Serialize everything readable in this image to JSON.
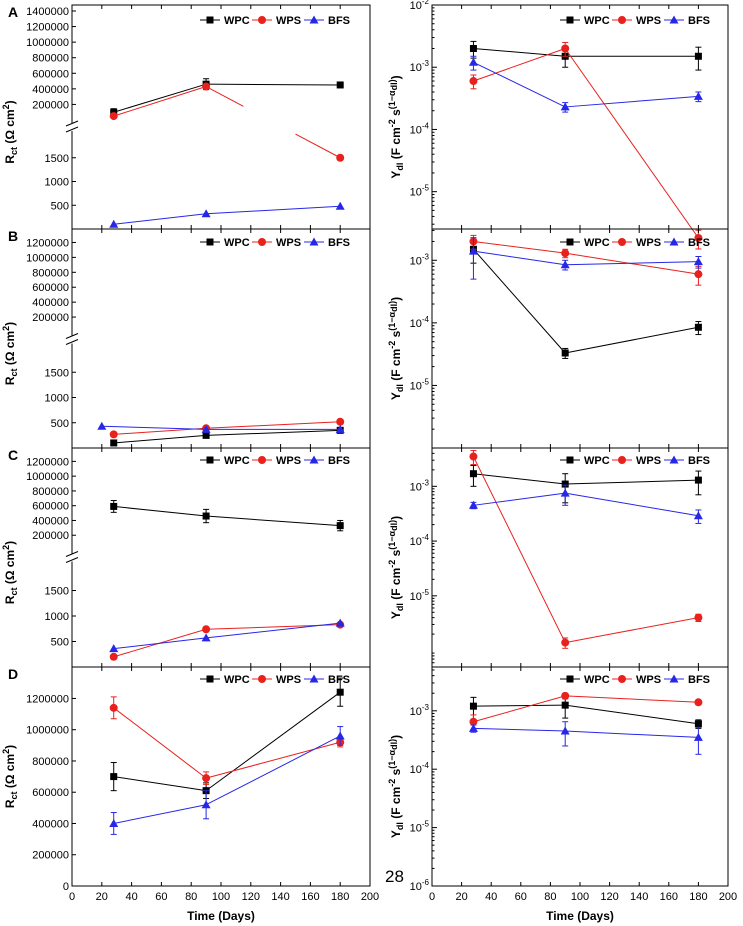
{
  "legend": [
    "WPC",
    "WPS",
    "BFS"
  ],
  "colors": {
    "WPC": "#000000",
    "WPS": "#e8211d",
    "BFS": "#2727e8"
  },
  "markers": {
    "WPC": "square",
    "WPS": "circle",
    "BFS": "triangle"
  },
  "x_axis": {
    "title": "Time (Days)",
    "ticks": [
      "0",
      "20",
      "40",
      "60",
      "80",
      "100",
      "120",
      "140",
      "160",
      "180",
      "200"
    ],
    "range": [
      0,
      200
    ]
  },
  "y_titles": {
    "rct": "R_ct (Ω cm²)",
    "ydl": "Y_dl (F cm⁻² s^(1−αdl))"
  },
  "page_number": "28",
  "chart_data": [
    {
      "panel": "A",
      "side": "left",
      "type": "line",
      "ylabel": "R_ct (Ω cm²)",
      "broken_axis": true,
      "upper": {
        "ylim": [
          0,
          1400000
        ],
        "ticks": [
          "200000",
          "400000",
          "600000",
          "800000",
          "1000000",
          "1200000",
          "1400000"
        ]
      },
      "lower": {
        "ylim": [
          0,
          2000
        ],
        "ticks": [
          "500",
          "1000",
          "1500"
        ]
      },
      "series": [
        {
          "name": "WPC",
          "points": [
            [
              28,
              100000,
              45000,
              "upper"
            ],
            [
              90,
              460000,
              70000,
              "upper"
            ],
            [
              180,
              450000,
              30000,
              "upper"
            ]
          ]
        },
        {
          "name": "WPS",
          "points": [
            [
              28,
              50000,
              0,
              "upper"
            ],
            [
              90,
              430000,
              0,
              "upper"
            ],
            [
              180,
              1500,
              0,
              "lower"
            ]
          ],
          "gap": [
            [
              115,
              150
            ]
          ]
        },
        {
          "name": "BFS",
          "points": [
            [
              28,
              100,
              0,
              "lower"
            ],
            [
              90,
              320,
              0,
              "lower"
            ],
            [
              180,
              480,
              0,
              "lower"
            ]
          ]
        }
      ]
    },
    {
      "panel": "A",
      "side": "right",
      "type": "line",
      "yscale": "log",
      "ylabel": "Y_dl (F cm⁻² s^(1−αdl))",
      "ylim_exp": [
        -5.6,
        -2
      ],
      "ticks": [
        "10-5",
        "10-4",
        "10-3",
        "10-2"
      ],
      "tick_exps": [
        -5,
        -4,
        -3,
        -2
      ],
      "series": [
        {
          "name": "WPC",
          "points": [
            [
              28,
              0.002,
              0.0006
            ],
            [
              90,
              0.0015,
              0.0005
            ],
            [
              180,
              0.0015,
              0.0006
            ]
          ]
        },
        {
          "name": "WPS",
          "points": [
            [
              28,
              0.0006,
              0.00015
            ],
            [
              90,
              0.002,
              0.0005
            ],
            [
              180,
              1.8e-06,
              6e-07
            ]
          ]
        },
        {
          "name": "BFS",
          "points": [
            [
              28,
              0.0012,
              0.0003
            ],
            [
              90,
              0.00023,
              4e-05
            ],
            [
              180,
              0.00034,
              6e-05
            ]
          ]
        }
      ]
    },
    {
      "panel": "B",
      "side": "left",
      "type": "line",
      "ylabel": "R_ct (Ω cm²)",
      "broken_axis": true,
      "upper": {
        "ylim": [
          0,
          1300000
        ],
        "ticks": [
          "200000",
          "400000",
          "600000",
          "800000",
          "1000000",
          "1200000"
        ]
      },
      "lower": {
        "ylim": [
          0,
          2000
        ],
        "ticks": [
          "500",
          "1000",
          "1500"
        ]
      },
      "series": [
        {
          "name": "WPC",
          "points": [
            [
              28,
              100,
              0,
              "lower"
            ],
            [
              90,
              250,
              0,
              "lower"
            ],
            [
              180,
              350,
              0,
              "lower"
            ]
          ]
        },
        {
          "name": "WPS",
          "points": [
            [
              28,
              270,
              0,
              "lower"
            ],
            [
              90,
              390,
              0,
              "lower"
            ],
            [
              180,
              520,
              0,
              "lower"
            ]
          ]
        },
        {
          "name": "BFS",
          "points": [
            [
              20,
              430,
              0,
              "lower"
            ],
            [
              90,
              370,
              0,
              "lower"
            ],
            [
              180,
              370,
              0,
              "lower"
            ]
          ]
        }
      ]
    },
    {
      "panel": "B",
      "side": "right",
      "type": "line",
      "yscale": "log",
      "ylabel": "Y_dl (F cm⁻² s^(1−αdl))",
      "ylim_exp": [
        -6,
        -2.5
      ],
      "ticks": [
        "10-5",
        "10-4",
        "10-3"
      ],
      "tick_exps": [
        -5,
        -4,
        -3
      ],
      "series": [
        {
          "name": "WPC",
          "points": [
            [
              28,
              0.0015,
              0.0006
            ],
            [
              90,
              3.3e-05,
              6e-06
            ],
            [
              180,
              8.5e-05,
              2e-05
            ]
          ]
        },
        {
          "name": "WPS",
          "points": [
            [
              28,
              0.002,
              0.0005
            ],
            [
              90,
              0.0013,
              0.0002
            ],
            [
              180,
              0.0006,
              0.0002
            ]
          ]
        },
        {
          "name": "BFS",
          "points": [
            [
              28,
              0.0014,
              0.0009
            ],
            [
              90,
              0.00085,
              0.00015
            ],
            [
              180,
              0.00095,
              0.0002
            ]
          ]
        }
      ]
    },
    {
      "panel": "C",
      "side": "left",
      "type": "line",
      "ylabel": "R_ct (Ω cm²)",
      "broken_axis": true,
      "upper": {
        "ylim": [
          0,
          1300000
        ],
        "ticks": [
          "200000",
          "400000",
          "600000",
          "800000",
          "1000000",
          "1200000"
        ]
      },
      "lower": {
        "ylim": [
          0,
          2000
        ],
        "ticks": [
          "500",
          "1000",
          "1500"
        ]
      },
      "series": [
        {
          "name": "WPC",
          "points": [
            [
              28,
              590000,
              80000,
              "upper"
            ],
            [
              90,
              460000,
              90000,
              "upper"
            ],
            [
              180,
              330000,
              70000,
              "upper"
            ]
          ]
        },
        {
          "name": "WPS",
          "points": [
            [
              28,
              200,
              0,
              "lower"
            ],
            [
              90,
              740,
              0,
              "lower"
            ],
            [
              180,
              830,
              0,
              "lower"
            ]
          ]
        },
        {
          "name": "BFS",
          "points": [
            [
              28,
              360,
              0,
              "lower"
            ],
            [
              90,
              570,
              0,
              "lower"
            ],
            [
              180,
              860,
              0,
              "lower"
            ]
          ]
        }
      ]
    },
    {
      "panel": "C",
      "side": "right",
      "type": "line",
      "yscale": "log",
      "ylabel": "Y_dl (F cm⁻² s^(1−αdl))",
      "ylim_exp": [
        -6.3,
        -2.3
      ],
      "ticks": [
        "10-5",
        "10-4",
        "10-3"
      ],
      "tick_exps": [
        -5,
        -4,
        -3
      ],
      "series": [
        {
          "name": "WPC",
          "points": [
            [
              28,
              0.0017,
              0.0007
            ],
            [
              90,
              0.0011,
              0.0006
            ],
            [
              180,
              0.0013,
              0.0006
            ]
          ]
        },
        {
          "name": "WPS",
          "points": [
            [
              28,
              0.0035,
              0.001
            ],
            [
              90,
              1.4e-06,
              3e-07
            ],
            [
              180,
              4e-06,
              6e-07
            ]
          ]
        },
        {
          "name": "BFS",
          "points": [
            [
              28,
              0.00045,
              6e-05
            ],
            [
              90,
              0.00075,
              0.0003
            ],
            [
              180,
              0.00029,
              8e-05
            ]
          ]
        }
      ]
    },
    {
      "panel": "D",
      "side": "left",
      "type": "line",
      "ylabel": "R_ct (Ω cm²)",
      "ylim": [
        0,
        1350000
      ],
      "ticks": [
        "0",
        "200000",
        "400000",
        "600000",
        "800000",
        "1000000",
        "1200000"
      ],
      "series": [
        {
          "name": "WPC",
          "points": [
            [
              28,
              700000,
              90000
            ],
            [
              90,
              610000,
              50000
            ],
            [
              180,
              1240000,
              90000
            ]
          ]
        },
        {
          "name": "WPS",
          "points": [
            [
              28,
              1140000,
              70000
            ],
            [
              90,
              690000,
              40000
            ],
            [
              180,
              920000,
              30000
            ]
          ]
        },
        {
          "name": "BFS",
          "points": [
            [
              28,
              400000,
              70000
            ],
            [
              90,
              520000,
              90000
            ],
            [
              180,
              960000,
              60000
            ]
          ]
        }
      ]
    },
    {
      "panel": "D",
      "side": "right",
      "type": "line",
      "yscale": "log",
      "ylabel": "Y_dl (F cm⁻² s^(1−αdl))",
      "ylim_exp": [
        -6,
        -2.25
      ],
      "ticks": [
        "10-6",
        "10-5",
        "10-4",
        "10-3"
      ],
      "tick_exps": [
        -6,
        -5,
        -4,
        -3
      ],
      "series": [
        {
          "name": "WPC",
          "points": [
            [
              28,
              0.0012,
              0.0005
            ],
            [
              90,
              0.00125,
              0.0005
            ],
            [
              180,
              0.0006,
              0.0001
            ]
          ]
        },
        {
          "name": "WPS",
          "points": [
            [
              28,
              0.00065,
              0.0002
            ],
            [
              90,
              0.0018,
              0.0002
            ],
            [
              180,
              0.0014,
              0.0001
            ]
          ]
        },
        {
          "name": "BFS",
          "points": [
            [
              28,
              0.0005,
              7e-05
            ],
            [
              90,
              0.00045,
              0.0002
            ],
            [
              180,
              0.00035,
              0.00017
            ]
          ]
        }
      ]
    }
  ]
}
